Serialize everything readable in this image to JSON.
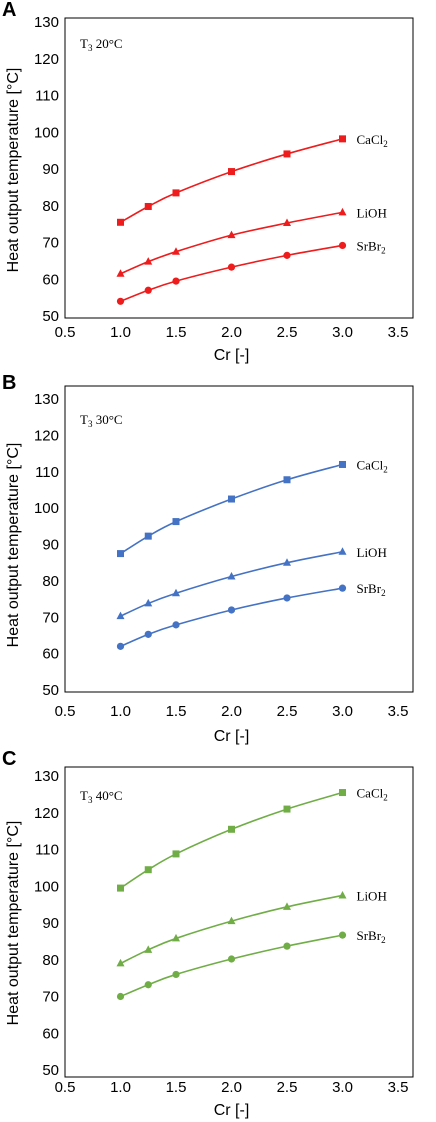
{
  "chart_data": [
    {
      "type": "line",
      "panel": "A",
      "annotation_main": "T",
      "annotation_sub": "3",
      "annotation_rest": "  20°C",
      "xlabel": "Cr [-]",
      "ylabel": "Heat output temperature [°C]",
      "xlim": [
        0.5,
        3.5
      ],
      "ylim": [
        50,
        130
      ],
      "xticks": [
        "0.5",
        "1.0",
        "1.5",
        "2.0",
        "2.5",
        "3.0",
        "3.5"
      ],
      "yticks": [
        "50",
        "60",
        "70",
        "80",
        "90",
        "100",
        "110",
        "120",
        "130"
      ],
      "x": [
        1.0,
        1.25,
        1.5,
        2.0,
        2.5,
        3.0
      ],
      "color": "#ee1c1c",
      "series": [
        {
          "name_main": "CaCl",
          "name_sub": "2",
          "marker": "square",
          "values": [
            75.5,
            79.8,
            83.5,
            89.3,
            94.1,
            98.2
          ]
        },
        {
          "name_main": "LiOH",
          "name_sub": "",
          "marker": "triangle",
          "values": [
            61.5,
            64.8,
            67.5,
            72.0,
            75.3,
            78.2
          ]
        },
        {
          "name_main": "SrBr",
          "name_sub": "2",
          "marker": "circle",
          "values": [
            54.0,
            57.0,
            59.5,
            63.3,
            66.5,
            69.2
          ]
        }
      ]
    },
    {
      "type": "line",
      "panel": "B",
      "annotation_main": "T",
      "annotation_sub": "3",
      "annotation_rest": " 30°C",
      "xlabel": "Cr [-]",
      "ylabel": "Heat output temperature [°C]",
      "xlim": [
        0.5,
        3.5
      ],
      "ylim": [
        50,
        130
      ],
      "xticks": [
        "0.5",
        "1.0",
        "1.5",
        "2.0",
        "2.5",
        "3.0",
        "3.5"
      ],
      "yticks": [
        "50",
        "60",
        "70",
        "80",
        "90",
        "100",
        "110",
        "120",
        "130"
      ],
      "x": [
        1.0,
        1.25,
        1.5,
        2.0,
        2.5,
        3.0
      ],
      "color": "#4472c4",
      "series": [
        {
          "name_main": "CaCl",
          "name_sub": "2",
          "marker": "square",
          "values": [
            87.5,
            92.3,
            96.3,
            102.5,
            107.8,
            112.0
          ]
        },
        {
          "name_main": "LiOH",
          "name_sub": "",
          "marker": "triangle",
          "values": [
            70.3,
            73.8,
            76.6,
            81.2,
            85.0,
            88.0
          ]
        },
        {
          "name_main": "SrBr",
          "name_sub": "2",
          "marker": "circle",
          "values": [
            62.0,
            65.3,
            67.9,
            72.0,
            75.3,
            78.0
          ]
        }
      ]
    },
    {
      "type": "line",
      "panel": "C",
      "annotation_main": "T",
      "annotation_sub": "3",
      "annotation_rest": " 40°C",
      "xlabel": "Cr [-]",
      "ylabel": "Heat output temperature [°C]",
      "xlim": [
        0.5,
        3.5
      ],
      "ylim": [
        50,
        130
      ],
      "xticks": [
        "0.5",
        "1.0",
        "1.5",
        "2.0",
        "2.5",
        "3.0",
        "3.5"
      ],
      "yticks": [
        "50",
        "60",
        "70",
        "80",
        "90",
        "100",
        "110",
        "120",
        "130"
      ],
      "x": [
        1.0,
        1.25,
        1.5,
        2.0,
        2.5,
        3.0
      ],
      "color": "#70ad47",
      "series": [
        {
          "name_main": "CaCl",
          "name_sub": "2",
          "marker": "square",
          "values": [
            99.5,
            104.5,
            108.8,
            115.5,
            121.0,
            125.5
          ]
        },
        {
          "name_main": "LiOH",
          "name_sub": "",
          "marker": "triangle",
          "values": [
            79.0,
            82.7,
            85.8,
            90.5,
            94.4,
            97.5
          ]
        },
        {
          "name_main": "SrBr",
          "name_sub": "2",
          "marker": "circle",
          "values": [
            70.0,
            73.2,
            76.0,
            80.2,
            83.7,
            86.7
          ]
        }
      ]
    }
  ]
}
